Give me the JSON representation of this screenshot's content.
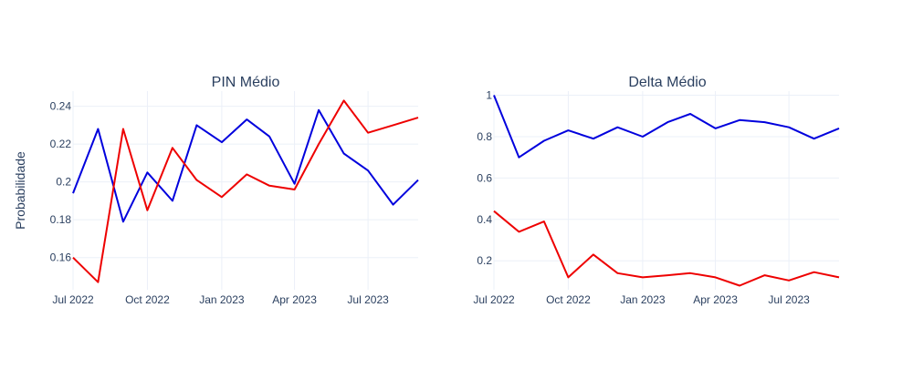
{
  "chart_data": [
    {
      "type": "line",
      "title": "PIN Médio",
      "ylabel": "Probabilidade",
      "xlabel": "",
      "x": [
        "2022-07-01",
        "2022-08-01",
        "2022-09-01",
        "2022-10-01",
        "2022-11-01",
        "2022-12-01",
        "2023-01-01",
        "2023-02-01",
        "2023-03-01",
        "2023-04-01",
        "2023-05-01",
        "2023-06-01",
        "2023-07-01",
        "2023-08-01",
        "2023-09-01"
      ],
      "xlim": [
        "2022-07-01",
        "2023-09-01"
      ],
      "ylim": [
        0.143,
        0.248
      ],
      "xticks": [
        {
          "date": "2022-07-01",
          "label": "Jul 2022"
        },
        {
          "date": "2022-10-01",
          "label": "Oct 2022"
        },
        {
          "date": "2023-01-01",
          "label": "Jan 2023"
        },
        {
          "date": "2023-04-01",
          "label": "Apr 2023"
        },
        {
          "date": "2023-07-01",
          "label": "Jul 2023"
        }
      ],
      "yticks": [
        {
          "value": 0.16,
          "label": "0.16"
        },
        {
          "value": 0.18,
          "label": "0.18"
        },
        {
          "value": 0.2,
          "label": "0.2"
        },
        {
          "value": 0.22,
          "label": "0.22"
        },
        {
          "value": 0.24,
          "label": "0.24"
        }
      ],
      "grid": true,
      "series": [
        {
          "color": "#0000dd",
          "values": [
            0.194,
            0.228,
            0.179,
            0.205,
            0.19,
            0.23,
            0.221,
            0.233,
            0.224,
            0.199,
            0.238,
            0.215,
            0.206,
            0.188,
            0.201
          ]
        },
        {
          "color": "#ee0000",
          "values": [
            0.16,
            0.147,
            0.228,
            0.185,
            0.218,
            0.201,
            0.192,
            0.204,
            0.198,
            0.196,
            0.22,
            0.243,
            0.226,
            0.23,
            0.234
          ]
        }
      ]
    },
    {
      "type": "line",
      "title": "Delta Médio",
      "ylabel": "",
      "xlabel": "",
      "x": [
        "2022-07-01",
        "2022-08-01",
        "2022-09-01",
        "2022-10-01",
        "2022-11-01",
        "2022-12-01",
        "2023-01-01",
        "2023-02-01",
        "2023-03-01",
        "2023-04-01",
        "2023-05-01",
        "2023-06-01",
        "2023-07-01",
        "2023-08-01",
        "2023-09-01"
      ],
      "xlim": [
        "2022-07-01",
        "2023-09-01"
      ],
      "ylim": [
        0.06,
        1.02
      ],
      "xticks": [
        {
          "date": "2022-07-01",
          "label": "Jul 2022"
        },
        {
          "date": "2022-10-01",
          "label": "Oct 2022"
        },
        {
          "date": "2023-01-01",
          "label": "Jan 2023"
        },
        {
          "date": "2023-04-01",
          "label": "Apr 2023"
        },
        {
          "date": "2023-07-01",
          "label": "Jul 2023"
        }
      ],
      "yticks": [
        {
          "value": 0.2,
          "label": "0.2"
        },
        {
          "value": 0.4,
          "label": "0.4"
        },
        {
          "value": 0.6,
          "label": "0.6"
        },
        {
          "value": 0.8,
          "label": "0.8"
        },
        {
          "value": 1.0,
          "label": "1"
        }
      ],
      "grid": true,
      "series": [
        {
          "color": "#0000dd",
          "values": [
            1.0,
            0.7,
            0.78,
            0.83,
            0.79,
            0.845,
            0.8,
            0.87,
            0.91,
            0.84,
            0.88,
            0.87,
            0.845,
            0.79,
            0.84
          ]
        },
        {
          "color": "#ee0000",
          "values": [
            0.44,
            0.34,
            0.39,
            0.12,
            0.23,
            0.14,
            0.12,
            0.13,
            0.14,
            0.12,
            0.08,
            0.13,
            0.105,
            0.145,
            0.12
          ]
        }
      ]
    }
  ]
}
